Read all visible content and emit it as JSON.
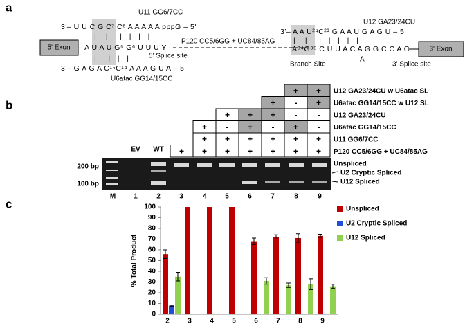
{
  "panel_a": {
    "letter": "a",
    "u11_label": "U11 GG6/7CC",
    "u11_seq": "3'– U U C G C⁷ C⁶ A A A A A pppG – 5'",
    "exon5": "5' Exon",
    "pre_mrna_5": "– A U A U G⁵ G⁶ U U U Y",
    "ss5": "5' Splice site",
    "mutant": "P120 CC5/6GG + UC84/85AG",
    "u6_seq": "3'– G A G A C¹⁵C¹⁴ A A A G U A – 5'",
    "u6_label": "U6atac GG14/15CC",
    "u12_label": "U12 GA23/24CU",
    "u12_seq": "3'– A A U²⁴C²³ G A A U G A G U – 5'",
    "pre_mrna_3": "A⁸⁴G⁸⁵ C U U A C A G G C C A C",
    "branch_a": "A",
    "branch": "Branch Site",
    "ss3": "3' Splice site",
    "exon3": "3' Exon"
  },
  "panel_b": {
    "letter": "b",
    "rows": [
      {
        "label": "U12 GA23/24CU w U6atac SL",
        "cells": [
          null,
          null,
          null,
          null,
          null,
          "+",
          "+"
        ],
        "shaded": [
          false,
          false,
          false,
          false,
          false,
          true,
          true
        ]
      },
      {
        "label": "U6atac GG14/15CC w U12 SL",
        "cells": [
          null,
          null,
          null,
          null,
          "+",
          "-",
          "+"
        ],
        "shaded": [
          false,
          false,
          false,
          false,
          true,
          false,
          true
        ]
      },
      {
        "label": "U12 GA23/24CU",
        "cells": [
          null,
          null,
          "+",
          "+",
          "+",
          "-",
          "-"
        ],
        "shaded": [
          false,
          false,
          false,
          true,
          true,
          false,
          false
        ]
      },
      {
        "label": "U6atac GG14/15CC",
        "cells": [
          null,
          "+",
          "-",
          "+",
          "-",
          "+",
          "-"
        ],
        "shaded": [
          false,
          false,
          false,
          true,
          false,
          true,
          false
        ]
      },
      {
        "label": "U11 GG6/7CC",
        "cells": [
          null,
          "+",
          "+",
          "+",
          "+",
          "+",
          "+"
        ],
        "shaded": [
          false,
          false,
          false,
          false,
          false,
          false,
          false
        ]
      },
      {
        "label": "P120 CC5/6GG + UC84/85AG",
        "cells": [
          "+",
          "+",
          "+",
          "+",
          "+",
          "+",
          "+"
        ],
        "shaded": [
          false,
          false,
          false,
          false,
          false,
          false,
          false
        ]
      }
    ],
    "ev": "EV",
    "wt": "WT",
    "lanes": [
      "M",
      "1",
      "2",
      "3",
      "4",
      "5",
      "6",
      "7",
      "8",
      "9"
    ],
    "marker_200": "200 bp",
    "marker_100": "100 bp",
    "band_unspliced": "Unspliced",
    "band_cryptic": "U2 Cryptic Spliced",
    "band_u12": "U12 Spliced"
  },
  "chart_data": {
    "type": "bar",
    "letter": "c",
    "ylabel": "% Total Product",
    "categories": [
      "2",
      "3",
      "4",
      "5",
      "6",
      "7",
      "8",
      "9"
    ],
    "series": [
      {
        "name": "Unspliced",
        "color": "#c00000",
        "values": [
          56,
          100,
          100,
          100,
          68,
          72,
          71,
          73
        ],
        "errors": [
          4,
          null,
          null,
          null,
          3,
          2,
          4,
          1.5
        ]
      },
      {
        "name": "U2 Cryptic Spliced",
        "color": "#1f4fd8",
        "values": [
          8,
          null,
          null,
          null,
          null,
          null,
          null,
          null
        ],
        "errors": [
          0.5,
          null,
          null,
          null,
          null,
          null,
          null,
          null
        ]
      },
      {
        "name": "U12 Spliced",
        "color": "#92d050",
        "values": [
          35,
          null,
          null,
          null,
          31,
          27,
          28,
          26
        ],
        "errors": [
          4,
          null,
          null,
          null,
          3,
          2,
          5,
          2
        ]
      }
    ],
    "ylim": [
      0,
      100
    ],
    "yticks": [
      0,
      10,
      20,
      30,
      40,
      50,
      60,
      70,
      80,
      90,
      100
    ],
    "legend": "right"
  }
}
